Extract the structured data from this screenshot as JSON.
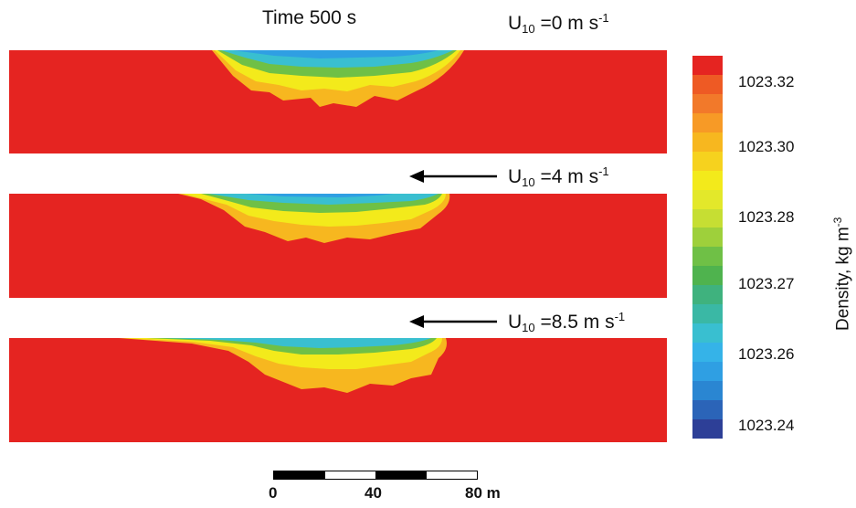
{
  "header": {
    "time_label": "Time 500 s"
  },
  "panels": [
    {
      "wind_prefix": "U",
      "wind_sub": "10",
      "wind_value": " =0 m s",
      "wind_sup": "-1",
      "has_arrow": false
    },
    {
      "wind_prefix": "U",
      "wind_sub": "10",
      "wind_value": " =4 m s",
      "wind_sup": "-1",
      "has_arrow": true
    },
    {
      "wind_prefix": "U",
      "wind_sub": "10",
      "wind_value": " =8.5 m s",
      "wind_sup": "-1",
      "has_arrow": true
    }
  ],
  "colorbar": {
    "title": "Density, kg m",
    "title_sup": "-3",
    "ticks": [
      "1023.32",
      "1023.30",
      "1023.28",
      "1023.27",
      "1023.26",
      "1023.24"
    ],
    "colors": [
      "#e52421",
      "#ee5a24",
      "#f2792a",
      "#f79a26",
      "#f7b71f",
      "#f6d21e",
      "#f3ea1b",
      "#e3e82a",
      "#c6de33",
      "#9ed03b",
      "#6fc046",
      "#4fb34e",
      "#3fb27e",
      "#3ab8a5",
      "#39bfd0",
      "#35b3e8",
      "#2f9fe3",
      "#2a86d2",
      "#2b64b8",
      "#2d3f97"
    ]
  },
  "scale_bar": {
    "ticks": [
      "0",
      "40",
      "80 m"
    ]
  }
}
